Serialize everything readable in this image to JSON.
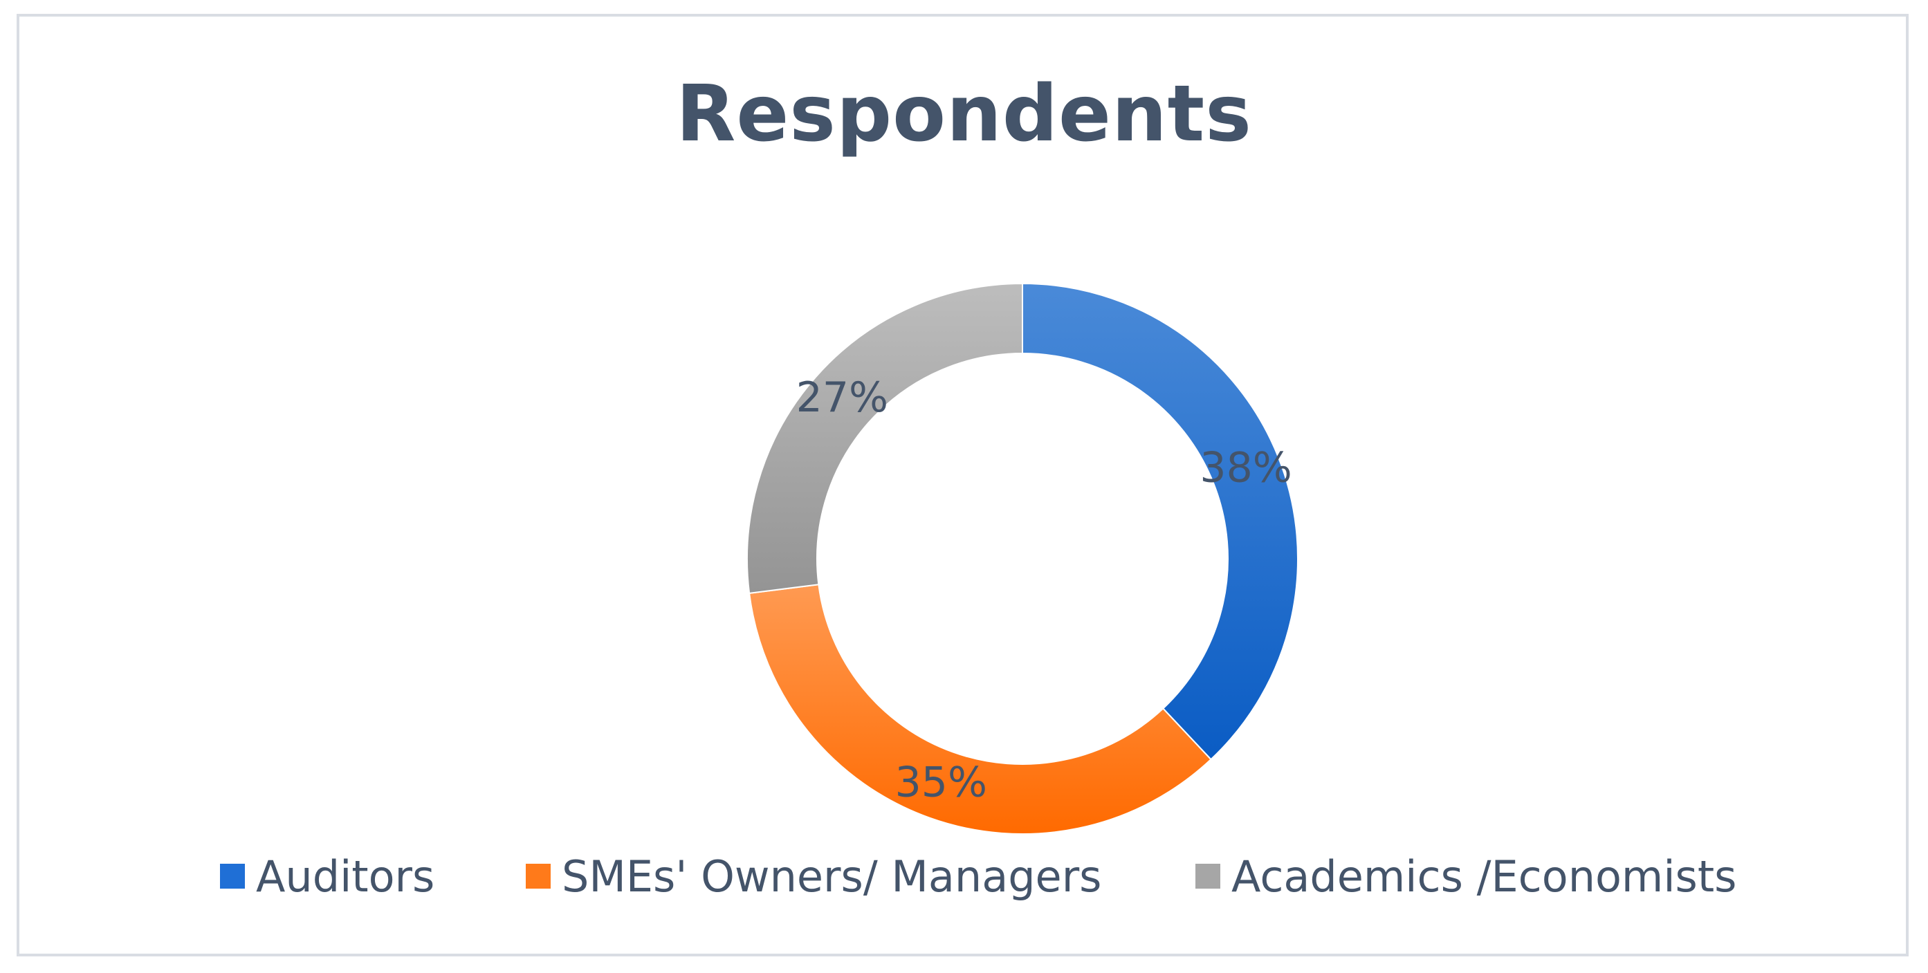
{
  "chart_data": {
    "type": "pie",
    "variant": "donut",
    "title": "Respondents",
    "categories": [
      "Auditors",
      "SMEs' Owners/ Managers",
      "Academics /Economists"
    ],
    "values": [
      38,
      35,
      27
    ],
    "data_labels": [
      "38%",
      "35%",
      "27%"
    ],
    "colors": [
      "#1f6fd6",
      "#ff7a1a",
      "#a6a6a6"
    ],
    "legend_position": "bottom",
    "start_angle": "top, clockwise"
  }
}
